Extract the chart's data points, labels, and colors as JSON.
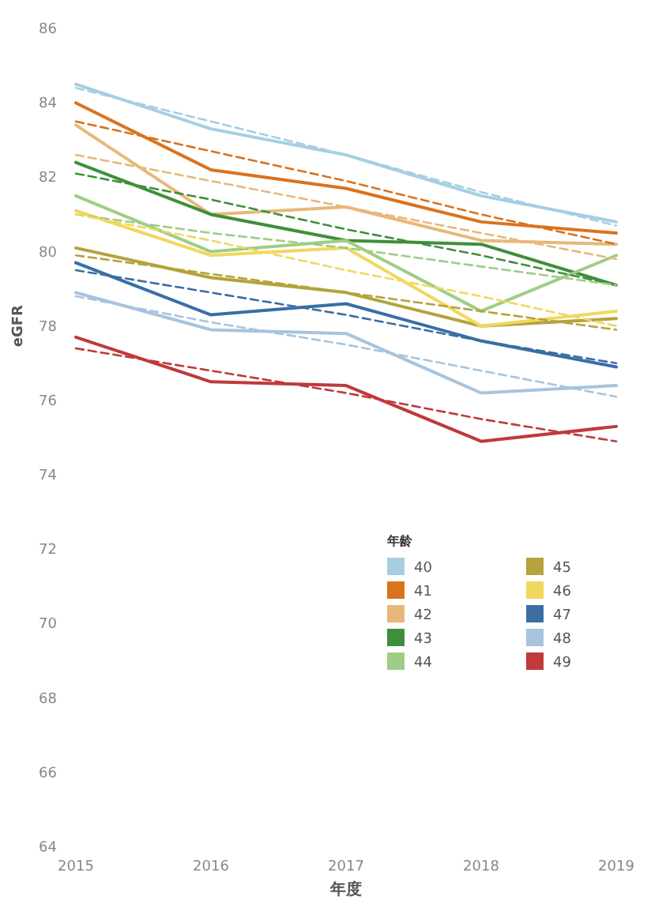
{
  "chart_data": {
    "type": "line",
    "xlabel": "年度",
    "ylabel": "eGFR",
    "legend_title": "年龄",
    "legend": "right",
    "x": [
      2015,
      2016,
      2017,
      2018,
      2019
    ],
    "xlim": [
      2015,
      2019
    ],
    "xticks": [
      2015,
      2016,
      2017,
      2018,
      2019
    ],
    "ylim": [
      64,
      86
    ],
    "yticks": [
      64,
      66,
      68,
      70,
      72,
      74,
      76,
      78,
      80,
      82,
      84,
      86
    ],
    "series": [
      {
        "name": "40",
        "color": "#a6cee3",
        "values": [
          84.5,
          83.3,
          82.6,
          81.5,
          80.8
        ]
      },
      {
        "name": "41",
        "color": "#d9731e",
        "values": [
          84.0,
          82.2,
          81.7,
          80.8,
          80.5
        ]
      },
      {
        "name": "42",
        "color": "#e8b87a",
        "values": [
          83.4,
          81.0,
          81.2,
          80.3,
          80.2
        ]
      },
      {
        "name": "43",
        "color": "#3f8f3a",
        "values": [
          82.4,
          81.0,
          80.3,
          80.2,
          79.1
        ]
      },
      {
        "name": "44",
        "color": "#9fcd85",
        "values": [
          81.5,
          80.0,
          80.3,
          78.4,
          79.9
        ]
      },
      {
        "name": "45",
        "color": "#b5a33b",
        "values": [
          80.1,
          79.3,
          78.9,
          78.0,
          78.2
        ]
      },
      {
        "name": "46",
        "color": "#f0d860",
        "values": [
          81.1,
          79.9,
          80.1,
          78.0,
          78.4
        ]
      },
      {
        "name": "47",
        "color": "#3a6ea5",
        "values": [
          79.7,
          78.3,
          78.6,
          77.6,
          76.9
        ]
      },
      {
        "name": "48",
        "color": "#a7c4de",
        "values": [
          78.9,
          77.9,
          77.8,
          76.2,
          76.4
        ]
      },
      {
        "name": "49",
        "color": "#c0393b",
        "values": [
          77.7,
          76.5,
          76.4,
          74.9,
          75.3
        ]
      },
      {
        "type": "line",
        "line_style": "dashed",
        "color": "#a6cee3",
        "values": [
          84.4,
          83.5,
          82.6,
          81.6,
          80.7
        ]
      },
      {
        "type": "line",
        "line_style": "dashed",
        "color": "#d9731e",
        "values": [
          83.5,
          82.7,
          81.9,
          81.0,
          80.2
        ]
      },
      {
        "type": "line",
        "line_style": "dashed",
        "color": "#e8b87a",
        "values": [
          82.6,
          81.9,
          81.2,
          80.5,
          79.8
        ]
      },
      {
        "type": "line",
        "line_style": "dashed",
        "color": "#3f8f3a",
        "values": [
          82.1,
          81.4,
          80.6,
          79.9,
          79.1
        ]
      },
      {
        "type": "line",
        "line_style": "dashed",
        "color": "#9fcd85",
        "values": [
          81.0,
          80.5,
          80.1,
          79.6,
          79.1
        ]
      },
      {
        "type": "line",
        "line_style": "dashed",
        "color": "#b5a33b",
        "values": [
          79.9,
          79.4,
          78.9,
          78.4,
          77.9
        ]
      },
      {
        "type": "line",
        "line_style": "dashed",
        "color": "#f0d860",
        "values": [
          81.0,
          80.3,
          79.5,
          78.8,
          78.0
        ]
      },
      {
        "type": "line",
        "line_style": "dashed",
        "color": "#3a6ea5",
        "values": [
          79.5,
          78.9,
          78.3,
          77.6,
          77.0
        ]
      },
      {
        "type": "line",
        "line_style": "dashed",
        "color": "#a7c4de",
        "values": [
          78.8,
          78.1,
          77.5,
          76.8,
          76.1
        ]
      },
      {
        "type": "line",
        "line_style": "dashed",
        "color": "#c0393b",
        "values": [
          77.4,
          76.8,
          76.2,
          75.5,
          74.9
        ]
      }
    ]
  }
}
